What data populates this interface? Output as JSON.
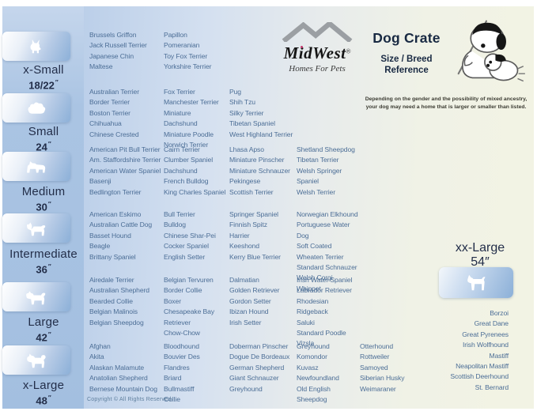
{
  "header": {
    "brand": "MidWest",
    "brand_mark": "®",
    "tagline": "Homes For Pets",
    "title": "Dog Crate",
    "subtitle_line1": "Size / Breed",
    "subtitle_line2": "Reference",
    "note_line1": "Depending on the gender and the possibility of mixed ancestry,",
    "note_line2": "your dog may need a home that is larger or smaller than listed."
  },
  "sizes": [
    {
      "id": "x-small",
      "label": "x-Small",
      "dimension": "18/22",
      "unit": "″",
      "icon": "papillon-silhouette",
      "columns": [
        [
          "Brussels Griffon",
          "Jack Russell Terrier",
          "Japanese Chin",
          "Maltese"
        ],
        [
          "Papillon",
          "Pomeranian",
          "Toy Fox Terrier",
          "Yorkshire Terrier"
        ]
      ]
    },
    {
      "id": "small",
      "label": "Small",
      "dimension": "24",
      "unit": "″",
      "icon": "shih-tzu-silhouette",
      "columns": [
        [
          "Australian Terrier",
          "Border Terrier",
          "Boston Terrier",
          "Chihuahua",
          "Chinese Crested"
        ],
        [
          "Fox Terrier",
          "Manchester Terrier",
          "Miniature Dachshund",
          "Miniature Poodle",
          "Norwich Terrier"
        ],
        [
          "Pug",
          "Shih Tzu",
          "Silky Terrier",
          "Tibetan Spaniel",
          "West Highland Terrier"
        ]
      ]
    },
    {
      "id": "medium",
      "label": "Medium",
      "dimension": "30",
      "unit": "″",
      "icon": "westie-silhouette",
      "columns": [
        [
          "American Pit Bull Terrier",
          "Am. Staffordshire Terrier",
          "American Water Spaniel",
          "Basenji",
          "Bedlington Terrier"
        ],
        [
          "Cairn Terrier",
          "Clumber Spaniel",
          "Dachshund",
          "French Bulldog",
          "King Charles Spaniel"
        ],
        [
          "Lhasa Apso",
          "Miniature Pinscher",
          "Miniature Schnauzer",
          "Pekingese",
          "Scottish Terrier"
        ],
        [
          "Shetland Sheepdog",
          "Tibetan Terrier",
          "Welsh Springer Spaniel",
          "Welsh Terrier"
        ]
      ]
    },
    {
      "id": "intermediate",
      "label": "Intermediate",
      "dimension": "36",
      "unit": "″",
      "icon": "spaniel-silhouette",
      "columns": [
        [
          "American Eskimo",
          "Australian Cattle Dog",
          "Basset Hound",
          "Beagle",
          "Brittany Spaniel"
        ],
        [
          "Bull Terrier",
          "Bulldog",
          "Chinese Shar-Pei",
          "Cocker Spaniel",
          "English Setter"
        ],
        [
          "Springer Spaniel",
          "Finnish Spitz",
          "Harrier",
          "Keeshond",
          "Kerry Blue Terrier"
        ],
        [
          "Norwegian Elkhound",
          "Portuguese Water Dog",
          "Soft Coated Wheaten Terrier",
          "Standard Schnauzer",
          "Welsh Corgi",
          "Whippet"
        ]
      ]
    },
    {
      "id": "large",
      "label": "Large",
      "dimension": "42",
      "unit": "″",
      "icon": "retriever-silhouette",
      "columns": [
        [
          "Airedale Terrier",
          "Australian Shepherd",
          "Bearded Collie",
          "Belgian Malinois",
          "Belgian Sheepdog"
        ],
        [
          "Belgian Tervuren",
          "Border Collie",
          "Boxer",
          "Chesapeake Bay Retriever",
          "Chow-Chow"
        ],
        [
          "Dalmatian",
          "Golden Retriever",
          "Gordon Setter",
          "Ibizan Hound",
          "Irish Setter"
        ],
        [
          "Irish Water Spaniel",
          "Labrador Retriever",
          "Rhodesian Ridgeback",
          "Saluki",
          "Standard Poodle",
          "Vizsla"
        ]
      ]
    },
    {
      "id": "x-large",
      "label": "x-Large",
      "dimension": "48",
      "unit": "″",
      "icon": "akita-silhouette",
      "columns": [
        [
          "Afghan",
          "Akita",
          "Alaskan Malamute",
          "Anatolian Shepherd",
          "Bernese Mountain Dog"
        ],
        [
          "Bloodhound",
          "Bouvier Des Flandres",
          "Briard",
          "Bullmastiff",
          "Collie"
        ],
        [
          "Doberman Pinscher",
          "Dogue De Bordeaux",
          "German Shepherd",
          "Giant Schnauzer",
          "Greyhound"
        ],
        [
          "Greyhound",
          "Komondor",
          "Kuvasz",
          "Newfoundland",
          "Old English Sheepdog"
        ],
        [
          "Otterhound",
          "Rottweiler",
          "Samoyed",
          "Siberian Husky",
          "Weimaraner"
        ]
      ]
    }
  ],
  "xx_large": {
    "id": "xx-large",
    "label": "xx-Large",
    "dimension": "54",
    "unit": "″",
    "icon": "great-dane-silhouette",
    "breeds": [
      "Borzoi",
      "Great Dane",
      "Great Pyrenees",
      "Irish Wolfhound",
      "Mastiff",
      "Neapolitan Mastiff",
      "Scottish Deerhound",
      "St. Bernard"
    ]
  },
  "footer": {
    "copyright": "Copyright © All Rights Reserved"
  },
  "colors": {
    "sidebar_blue": "#a9c4e2",
    "box_blue": "#8cb0d8",
    "title_navy": "#182942",
    "breed_text": "#4c6e96",
    "background_cream": "#f2f3e4",
    "logo_gray": "#9b9fa3",
    "logo_dot_magenta": "#c23a6e"
  }
}
